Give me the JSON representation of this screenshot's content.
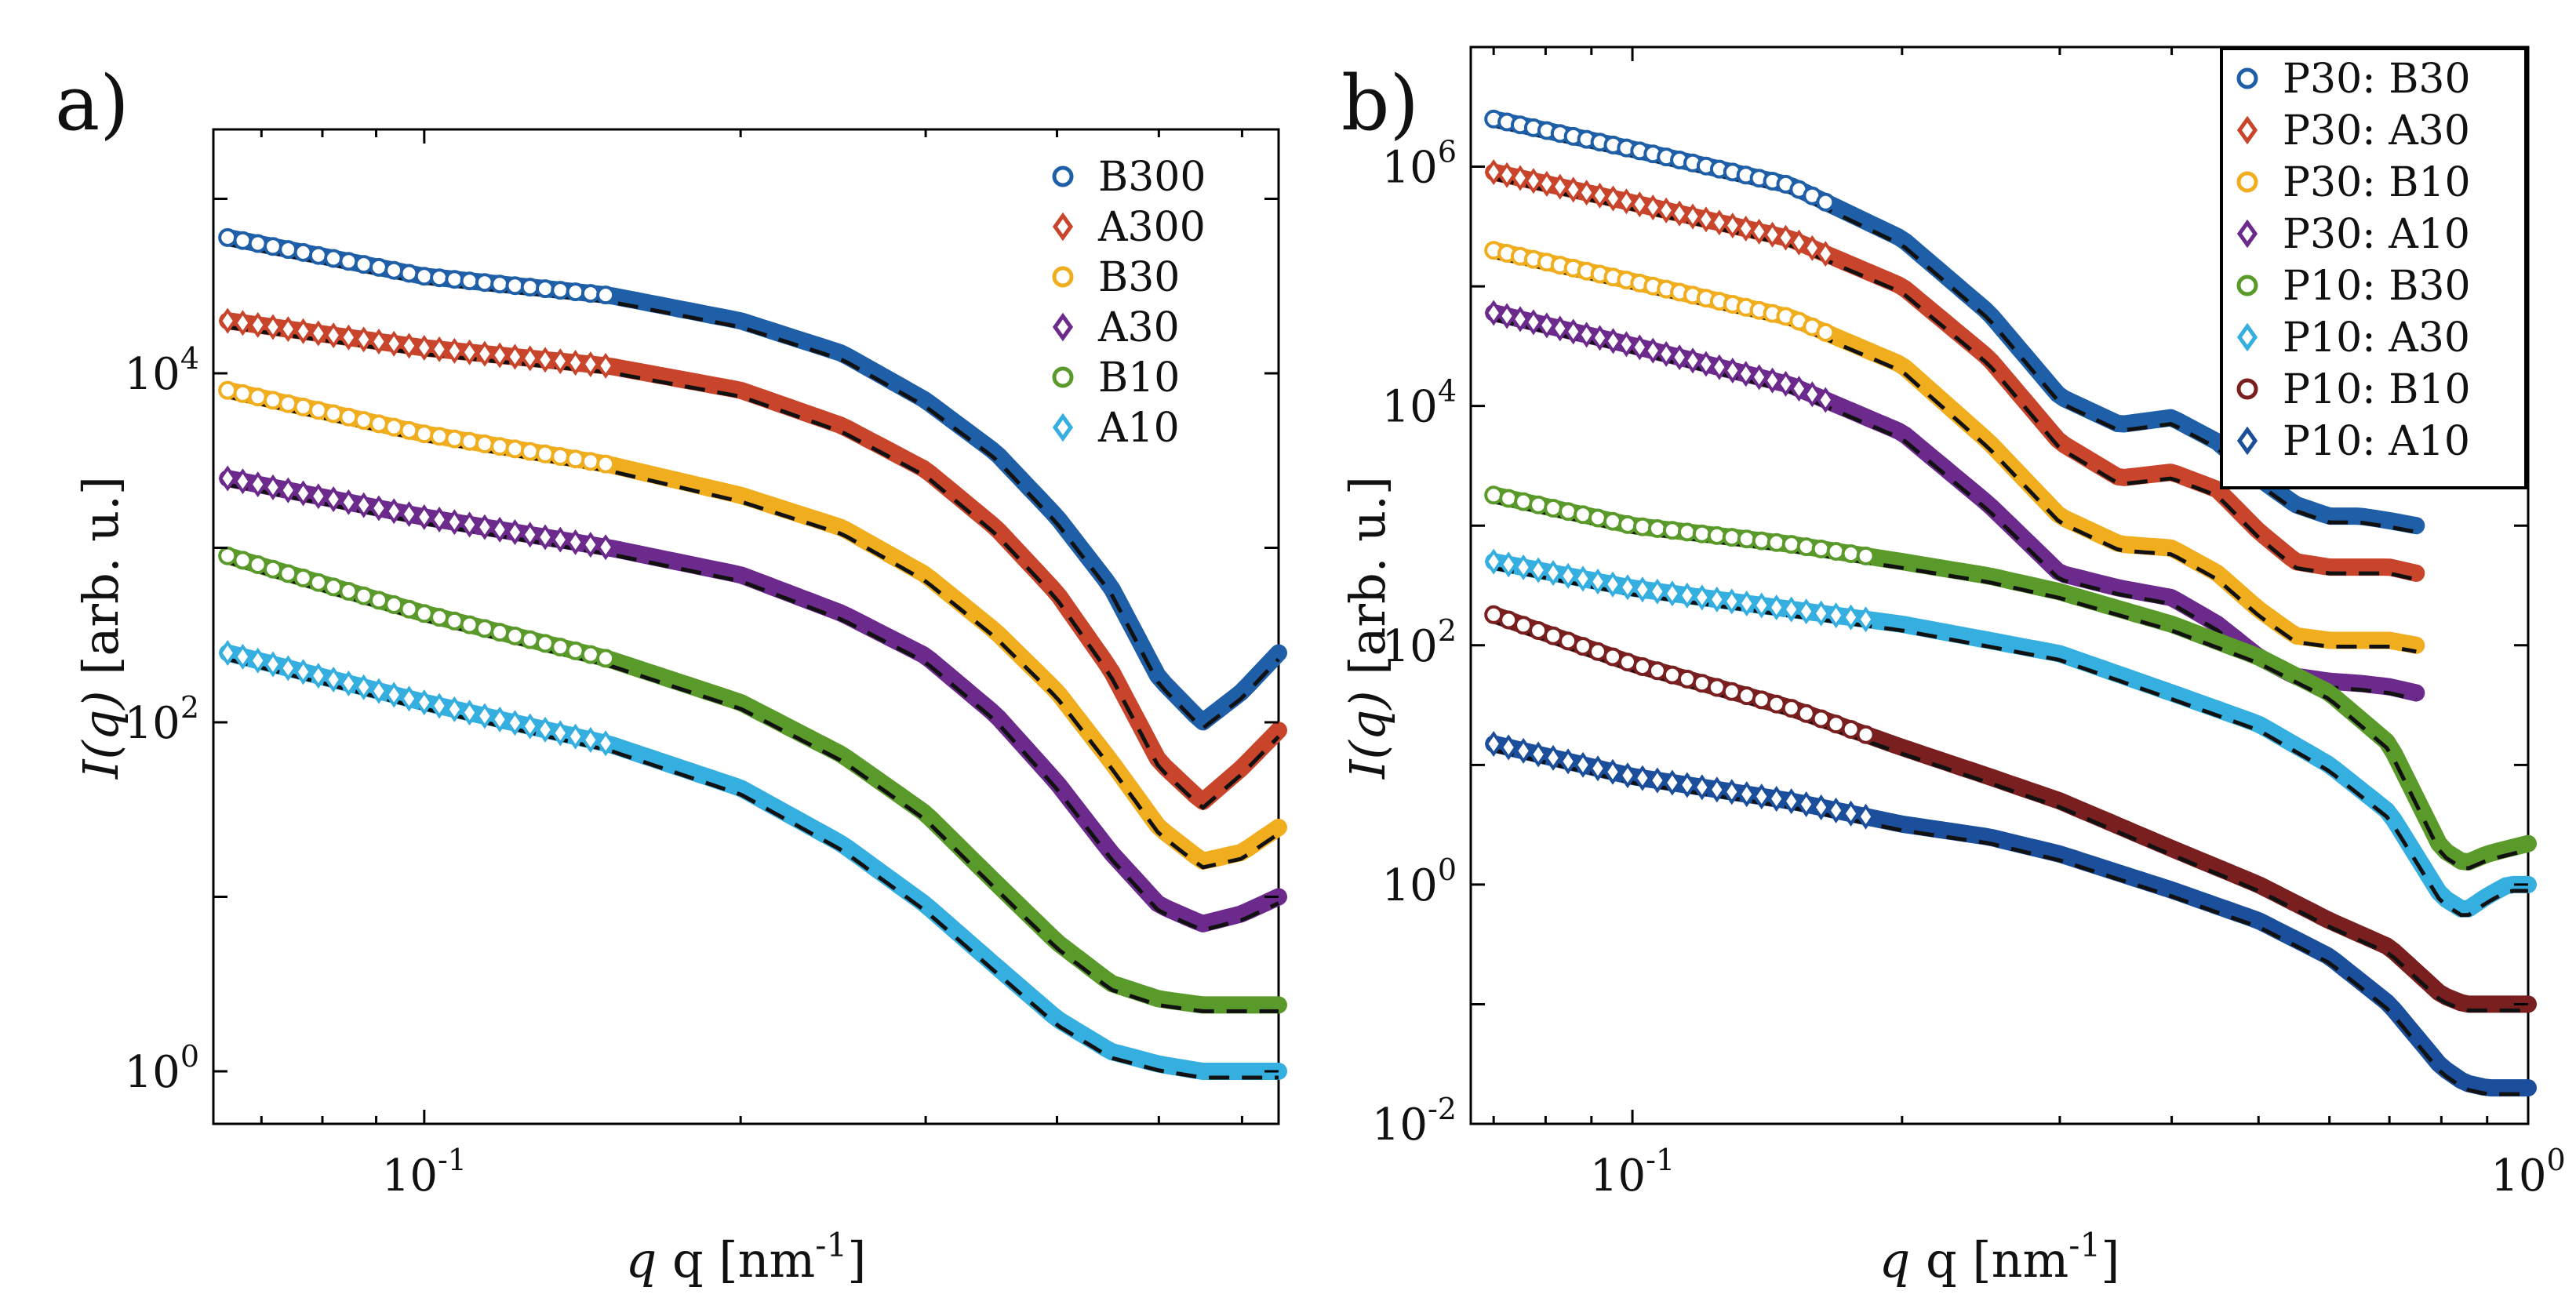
{
  "panels": [
    {
      "label": "a)",
      "chart_data": {
        "type": "scatter",
        "xscale": "log",
        "yscale": "log",
        "xlim": [
          0.063,
          0.65
        ],
        "ylim": [
          0.5,
          250000
        ],
        "xlabel": "q [nm",
        "xlabel_sup": "-1",
        "xlabel_close": "]",
        "ylabel_italic": "I(q)",
        "ylabel_rest": " [arb. u.]",
        "xticks": [
          {
            "base": "10",
            "exp": "-1",
            "value": 0.1
          }
        ],
        "yticks": [
          {
            "base": "10",
            "exp": "0",
            "value": 1
          },
          {
            "base": "10",
            "exp": "2",
            "value": 100
          },
          {
            "base": "10",
            "exp": "4",
            "value": 10000
          }
        ],
        "legend_position": "top-right",
        "legend_box": false,
        "series": [
          {
            "name": "B300",
            "color": "#1f5fa8",
            "marker": "circle",
            "x": [
              0.065,
              0.1,
              0.15,
              0.2,
              0.25,
              0.3,
              0.35,
              0.4,
              0.45,
              0.5,
              0.55,
              0.6,
              0.65
            ],
            "y": [
              60000,
              36000,
              28000,
              20000,
              13000,
              7000,
              3500,
              1500,
              600,
              180,
              100,
              150,
              250
            ]
          },
          {
            "name": "A300",
            "color": "#c8442a",
            "marker": "diamond",
            "x": [
              0.065,
              0.1,
              0.15,
              0.2,
              0.25,
              0.3,
              0.35,
              0.4,
              0.45,
              0.5,
              0.55,
              0.6,
              0.65
            ],
            "y": [
              20000,
              14000,
              11000,
              8000,
              5000,
              2800,
              1300,
              550,
              200,
              60,
              35,
              55,
              90
            ]
          },
          {
            "name": "B30",
            "color": "#f0ad1e",
            "marker": "circle",
            "x": [
              0.065,
              0.1,
              0.15,
              0.2,
              0.25,
              0.3,
              0.35,
              0.4,
              0.45,
              0.5,
              0.55,
              0.6,
              0.65
            ],
            "y": [
              8000,
              4500,
              3000,
              2000,
              1300,
              700,
              330,
              150,
              60,
              25,
              16,
              18,
              25
            ]
          },
          {
            "name": "A30",
            "color": "#6b2a8c",
            "marker": "diamond",
            "x": [
              0.065,
              0.1,
              0.15,
              0.2,
              0.25,
              0.3,
              0.35,
              0.4,
              0.45,
              0.5,
              0.55,
              0.6,
              0.65
            ],
            "y": [
              2500,
              1500,
              1000,
              700,
              420,
              240,
              110,
              45,
              18,
              9,
              7,
              8,
              10
            ]
          },
          {
            "name": "B10",
            "color": "#5a9a2a",
            "marker": "circle",
            "x": [
              0.065,
              0.1,
              0.15,
              0.2,
              0.25,
              0.3,
              0.35,
              0.4,
              0.45,
              0.5,
              0.55,
              0.6,
              0.65
            ],
            "y": [
              900,
              420,
              230,
              130,
              65,
              30,
              12,
              5.5,
              3.2,
              2.6,
              2.4,
              2.4,
              2.4
            ]
          },
          {
            "name": "A10",
            "color": "#35aee0",
            "marker": "diamond",
            "x": [
              0.065,
              0.1,
              0.15,
              0.2,
              0.25,
              0.3,
              0.35,
              0.4,
              0.45,
              0.5,
              0.55,
              0.6,
              0.65
            ],
            "y": [
              250,
              130,
              75,
              42,
              20,
              9,
              4,
              2,
              1.3,
              1.1,
              1.0,
              1.0,
              1.0
            ]
          }
        ]
      }
    },
    {
      "label": "b)",
      "chart_data": {
        "type": "scatter",
        "xscale": "log",
        "yscale": "log",
        "xlim": [
          0.066,
          1.0
        ],
        "ylim": [
          0.01,
          10000000
        ],
        "xlabel": "q [nm",
        "xlabel_sup": "-1",
        "xlabel_close": "]",
        "ylabel_italic": "I(q)",
        "ylabel_rest": " [arb. u.]",
        "xticks": [
          {
            "base": "10",
            "exp": "-1",
            "value": 0.1
          },
          {
            "base": "10",
            "exp": "0",
            "value": 1
          }
        ],
        "yticks": [
          {
            "base": "10",
            "exp": "-2",
            "value": 0.01
          },
          {
            "base": "10",
            "exp": "0",
            "value": 1
          },
          {
            "base": "10",
            "exp": "2",
            "value": 100
          },
          {
            "base": "10",
            "exp": "4",
            "value": 10000
          },
          {
            "base": "10",
            "exp": "6",
            "value": 1000000
          }
        ],
        "legend_position": "top-right",
        "legend_box": true,
        "series": [
          {
            "name": "P30: B30",
            "color": "#1f5fa8",
            "marker": "circle",
            "x": [
              0.07,
              0.1,
              0.15,
              0.2,
              0.25,
              0.3,
              0.35,
              0.4,
              0.45,
              0.5,
              0.55,
              0.6,
              0.65,
              0.7,
              0.75
            ],
            "y": [
              2500000,
              1400000,
              700000,
              250000,
              60000,
              12000,
              7000,
              8000,
              5000,
              2500,
              1500,
              1200,
              1200,
              1100,
              1000
            ]
          },
          {
            "name": "P30: A30",
            "color": "#c8442a",
            "marker": "diamond",
            "x": [
              0.07,
              0.1,
              0.15,
              0.2,
              0.25,
              0.3,
              0.35,
              0.4,
              0.45,
              0.5,
              0.55,
              0.6,
              0.65,
              0.7,
              0.75
            ],
            "y": [
              900000,
              500000,
              250000,
              100000,
              25000,
              5000,
              2500,
              2800,
              2000,
              900,
              500,
              450,
              450,
              450,
              400
            ]
          },
          {
            "name": "P30: B10",
            "color": "#f0ad1e",
            "marker": "circle",
            "x": [
              0.07,
              0.1,
              0.15,
              0.2,
              0.25,
              0.3,
              0.35,
              0.4,
              0.45,
              0.5,
              0.55,
              0.6,
              0.65,
              0.7,
              0.75
            ],
            "y": [
              200000,
              110000,
              55000,
              22000,
              5000,
              1200,
              700,
              650,
              400,
              200,
              120,
              110,
              110,
              110,
              100
            ]
          },
          {
            "name": "P30: A10",
            "color": "#6b2a8c",
            "marker": "diamond",
            "x": [
              0.07,
              0.1,
              0.15,
              0.2,
              0.25,
              0.3,
              0.35,
              0.4,
              0.45,
              0.5,
              0.55,
              0.6,
              0.65,
              0.7,
              0.75
            ],
            "y": [
              60000,
              32000,
              15000,
              6000,
              1500,
              400,
              300,
              250,
              150,
              80,
              55,
              50,
              48,
              45,
              40
            ]
          },
          {
            "name": "P10: B30",
            "color": "#5a9a2a",
            "marker": "circle",
            "x": [
              0.07,
              0.1,
              0.15,
              0.2,
              0.25,
              0.3,
              0.4,
              0.5,
              0.6,
              0.7,
              0.8,
              0.85,
              0.9,
              0.95,
              1.0
            ],
            "y": [
              1800,
              1000,
              700,
              500,
              380,
              280,
              150,
              80,
              40,
              15,
              2,
              1.5,
              1.8,
              2.0,
              2.2
            ]
          },
          {
            "name": "P10: A30",
            "color": "#35aee0",
            "marker": "diamond",
            "x": [
              0.07,
              0.1,
              0.15,
              0.2,
              0.25,
              0.3,
              0.4,
              0.5,
              0.6,
              0.7,
              0.8,
              0.85,
              0.9,
              0.95,
              1.0
            ],
            "y": [
              500,
              300,
              200,
              150,
              110,
              85,
              40,
              22,
              10,
              4,
              0.8,
              0.6,
              0.8,
              1.0,
              1.0
            ]
          },
          {
            "name": "P10: B10",
            "color": "#7a1f1f",
            "marker": "circle",
            "x": [
              0.07,
              0.1,
              0.15,
              0.2,
              0.25,
              0.3,
              0.4,
              0.5,
              0.6,
              0.7,
              0.8,
              0.85,
              0.9,
              0.95,
              1.0
            ],
            "y": [
              180,
              70,
              30,
              14,
              8,
              5,
              2,
              1,
              0.5,
              0.3,
              0.12,
              0.1,
              0.1,
              0.1,
              0.1
            ]
          },
          {
            "name": "P10: A10",
            "color": "#1b4f9c",
            "marker": "diamond",
            "x": [
              0.07,
              0.1,
              0.15,
              0.2,
              0.25,
              0.3,
              0.4,
              0.5,
              0.6,
              0.7,
              0.8,
              0.85,
              0.9,
              0.95,
              1.0
            ],
            "y": [
              15,
              8,
              5,
              3.2,
              2.5,
              1.8,
              0.9,
              0.5,
              0.25,
              0.1,
              0.03,
              0.022,
              0.02,
              0.02,
              0.02
            ]
          }
        ]
      }
    }
  ]
}
